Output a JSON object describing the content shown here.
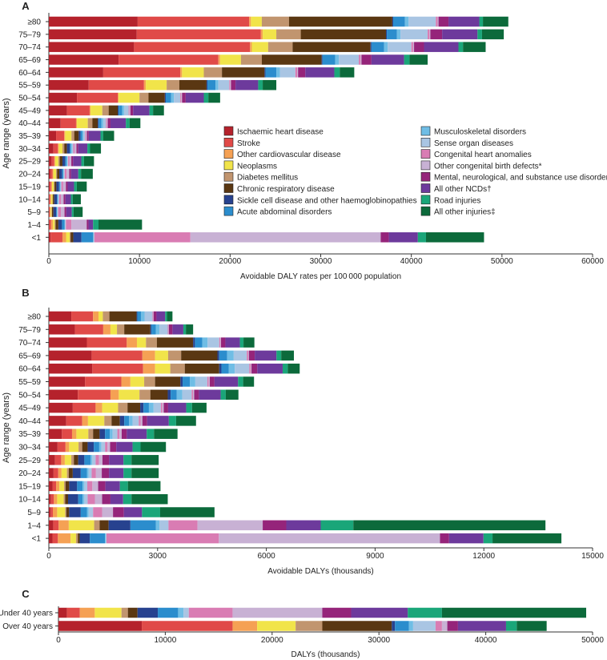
{
  "colors": {
    "ihd": "#b5222c",
    "stroke": "#e04a48",
    "ocd": "#f5a154",
    "neo": "#f1e44a",
    "dm": "#c1956f",
    "crd": "#5a3712",
    "scd": "#27428f",
    "aad": "#2b8dcd",
    "msk": "#6fbde5",
    "sod": "#a9c5e3",
    "cha": "#d97cb3",
    "ocb": "#c8b1d4",
    "mns": "#95247a",
    "oncd": "#6d3a9c",
    "road": "#1aa679",
    "inj": "#0c6a3b"
  },
  "legend": [
    {
      "key": "ihd",
      "label": "Ischaemic heart disease"
    },
    {
      "key": "stroke",
      "label": "Stroke"
    },
    {
      "key": "ocd",
      "label": "Other cardiovascular disease"
    },
    {
      "key": "neo",
      "label": "Neoplasms"
    },
    {
      "key": "dm",
      "label": "Diabetes mellitus"
    },
    {
      "key": "crd",
      "label": "Chronic respiratory disease"
    },
    {
      "key": "scd",
      "label": "Sickle cell disease and other haemoglobinopathies"
    },
    {
      "key": "aad",
      "label": "Acute abdominal disorders"
    },
    {
      "key": "msk",
      "label": "Musculoskeletal disorders"
    },
    {
      "key": "sod",
      "label": "Sense organ diseases"
    },
    {
      "key": "cha",
      "label": "Congenital heart anomalies"
    },
    {
      "key": "ocb",
      "label": "Other congenital birth defects*"
    },
    {
      "key": "mns",
      "label": "Mental, neurological, and substance use disorders"
    },
    {
      "key": "oncd",
      "label": "All other NCDs†"
    },
    {
      "key": "road",
      "label": "Road injuries"
    },
    {
      "key": "inj",
      "label": "All other injuries‡"
    }
  ],
  "chart_data": [
    {
      "panel": "A",
      "type": "bar",
      "orientation": "horizontal",
      "stacked": true,
      "xlabel": "Avoidable DALY rates per 100 000 population",
      "ylabel": "Age range (years)",
      "xlim": [
        0,
        60000
      ],
      "xticks": [
        "0",
        "10000",
        "20000",
        "30000",
        "40000",
        "50000",
        "60000"
      ],
      "categories": [
        "≥80",
        "75–79",
        "70–74",
        "65–69",
        "60–64",
        "55–59",
        "50–54",
        "45–49",
        "40–44",
        "35–39",
        "30–34",
        "25–29",
        "20–24",
        "15–19",
        "10–14",
        "5–9",
        "1–4",
        "<1"
      ],
      "series": [
        {
          "key": "ihd",
          "values": [
            9800,
            9700,
            9400,
            7700,
            6000,
            4400,
            3100,
            2000,
            1300,
            800,
            500,
            300,
            200,
            100,
            50,
            50,
            50,
            200
          ]
        },
        {
          "key": "stroke",
          "values": [
            12300,
            13700,
            12800,
            11000,
            8500,
            6100,
            4500,
            2500,
            1700,
            900,
            500,
            300,
            200,
            150,
            100,
            50,
            200,
            1300
          ]
        },
        {
          "key": "ocd",
          "values": [
            200,
            200,
            200,
            200,
            200,
            200,
            100,
            100,
            100,
            100,
            100,
            100,
            100,
            100,
            100,
            100,
            200,
            400
          ]
        },
        {
          "key": "neo",
          "values": [
            1200,
            1500,
            1800,
            2300,
            2400,
            2300,
            2300,
            1300,
            1200,
            700,
            400,
            350,
            300,
            200,
            150,
            100,
            200,
            400
          ]
        },
        {
          "key": "dm",
          "values": [
            3000,
            2700,
            2700,
            2300,
            2000,
            1400,
            1000,
            700,
            500,
            300,
            200,
            150,
            100,
            80,
            50,
            50,
            100,
            100
          ]
        },
        {
          "key": "crd",
          "values": [
            11400,
            9400,
            8600,
            6600,
            4700,
            3000,
            1800,
            1000,
            600,
            500,
            300,
            300,
            250,
            200,
            150,
            150,
            300,
            300
          ]
        },
        {
          "key": "scd",
          "values": [
            100,
            100,
            100,
            100,
            100,
            100,
            100,
            100,
            100,
            200,
            300,
            300,
            300,
            300,
            300,
            300,
            400,
            900
          ]
        },
        {
          "key": "aad",
          "values": [
            1300,
            1100,
            1400,
            1400,
            1200,
            900,
            600,
            400,
            300,
            200,
            150,
            150,
            150,
            100,
            100,
            100,
            300,
            1300
          ]
        },
        {
          "key": "msk",
          "values": [
            400,
            400,
            400,
            400,
            400,
            300,
            300,
            200,
            200,
            100,
            100,
            80,
            50,
            50,
            30,
            30,
            30,
            20
          ]
        },
        {
          "key": "sod",
          "values": [
            3000,
            3000,
            2600,
            2200,
            1700,
            1200,
            700,
            500,
            300,
            200,
            150,
            100,
            100,
            100,
            100,
            100,
            100,
            100
          ]
        },
        {
          "key": "cha",
          "values": [
            200,
            200,
            200,
            200,
            200,
            100,
            100,
            100,
            100,
            100,
            150,
            150,
            200,
            200,
            200,
            300,
            600,
            10600
          ]
        },
        {
          "key": "ocb",
          "values": [
            100,
            100,
            100,
            100,
            100,
            100,
            100,
            100,
            100,
            100,
            200,
            200,
            300,
            300,
            300,
            400,
            1700,
            21000
          ]
        },
        {
          "key": "mns",
          "values": [
            1100,
            1300,
            1100,
            1100,
            800,
            500,
            400,
            300,
            300,
            200,
            200,
            200,
            200,
            200,
            200,
            200,
            200,
            900
          ]
        },
        {
          "key": "oncd",
          "values": [
            3400,
            3900,
            3800,
            3600,
            3200,
            2500,
            2000,
            1800,
            1700,
            1300,
            1000,
            900,
            800,
            700,
            600,
            600,
            500,
            3200
          ]
        },
        {
          "key": "road",
          "values": [
            400,
            500,
            500,
            600,
            600,
            500,
            500,
            400,
            400,
            300,
            300,
            300,
            300,
            300,
            200,
            200,
            600,
            900
          ]
        },
        {
          "key": "inj",
          "values": [
            2800,
            2400,
            2500,
            2000,
            1600,
            1500,
            1300,
            1200,
            1200,
            1200,
            1200,
            1100,
            1300,
            1100,
            900,
            1000,
            4800,
            6400
          ]
        }
      ]
    },
    {
      "panel": "B",
      "type": "bar",
      "orientation": "horizontal",
      "stacked": true,
      "xlabel": "Avoidable DALYs (thousands)",
      "ylabel": "Age range (years)",
      "xlim": [
        0,
        15000
      ],
      "xticks": [
        "0",
        "3000",
        "6000",
        "9000",
        "12000",
        "15000"
      ],
      "categories": [
        "≥80",
        "75–79",
        "70–74",
        "65–69",
        "60–64",
        "55–59",
        "50–54",
        "45–49",
        "40–44",
        "35–39",
        "30–34",
        "25–29",
        "20–24",
        "15–19",
        "10–14",
        "5–9",
        "1–4",
        "<1"
      ],
      "series": [
        {
          "key": "ihd",
          "values": [
            620,
            720,
            1050,
            1180,
            1200,
            1000,
            800,
            660,
            480,
            360,
            240,
            170,
            130,
            100,
            60,
            50,
            120,
            100
          ]
        },
        {
          "key": "stroke",
          "values": [
            600,
            780,
            1100,
            1400,
            1400,
            1000,
            900,
            630,
            440,
            280,
            220,
            170,
            130,
            100,
            80,
            60,
            150,
            150
          ]
        },
        {
          "key": "ocd",
          "values": [
            150,
            200,
            280,
            350,
            330,
            250,
            230,
            180,
            160,
            120,
            100,
            100,
            90,
            90,
            90,
            120,
            280,
            350
          ]
        },
        {
          "key": "neo",
          "values": [
            120,
            180,
            250,
            360,
            420,
            380,
            570,
            440,
            450,
            330,
            260,
            180,
            150,
            130,
            180,
            220,
            700,
            150
          ]
        },
        {
          "key": "dm",
          "values": [
            180,
            200,
            300,
            360,
            400,
            300,
            300,
            260,
            200,
            130,
            100,
            70,
            50,
            40,
            40,
            30,
            150,
            50
          ]
        },
        {
          "key": "crd",
          "values": [
            750,
            720,
            1000,
            1000,
            950,
            700,
            480,
            350,
            230,
            180,
            150,
            120,
            110,
            100,
            80,
            80,
            250,
            50
          ]
        },
        {
          "key": "scd",
          "values": [
            20,
            30,
            50,
            50,
            60,
            60,
            80,
            90,
            120,
            150,
            170,
            170,
            220,
            220,
            280,
            320,
            600,
            280
          ]
        },
        {
          "key": "aad",
          "values": [
            100,
            120,
            200,
            220,
            200,
            200,
            170,
            150,
            130,
            130,
            150,
            170,
            170,
            150,
            120,
            170,
            700,
            420
          ]
        },
        {
          "key": "msk",
          "values": [
            100,
            100,
            150,
            180,
            170,
            150,
            150,
            130,
            100,
            80,
            60,
            50,
            50,
            50,
            50,
            50,
            100,
            20
          ]
        },
        {
          "key": "sod",
          "values": [
            220,
            230,
            320,
            360,
            400,
            330,
            260,
            200,
            170,
            130,
            100,
            90,
            80,
            80,
            90,
            120,
            250,
            20
          ]
        },
        {
          "key": "cha",
          "values": [
            20,
            20,
            30,
            40,
            40,
            40,
            40,
            40,
            50,
            60,
            70,
            90,
            120,
            140,
            200,
            250,
            800,
            3100
          ]
        },
        {
          "key": "ocb",
          "values": [
            10,
            10,
            20,
            20,
            20,
            30,
            30,
            40,
            50,
            60,
            70,
            100,
            160,
            160,
            200,
            300,
            1800,
            6100
          ]
        },
        {
          "key": "mns",
          "values": [
            80,
            100,
            120,
            160,
            160,
            130,
            130,
            120,
            130,
            140,
            170,
            180,
            200,
            200,
            230,
            300,
            650,
            250
          ]
        },
        {
          "key": "oncd",
          "values": [
            240,
            300,
            400,
            600,
            700,
            650,
            600,
            500,
            600,
            550,
            450,
            400,
            400,
            400,
            350,
            500,
            950,
            950
          ]
        },
        {
          "key": "road",
          "values": [
            50,
            70,
            100,
            130,
            140,
            140,
            140,
            160,
            200,
            200,
            220,
            220,
            220,
            220,
            230,
            500,
            900,
            250
          ]
        },
        {
          "key": "inj",
          "values": [
            150,
            200,
            300,
            350,
            330,
            300,
            350,
            400,
            550,
            650,
            700,
            750,
            750,
            900,
            1000,
            1500,
            5300,
            1900
          ]
        }
      ]
    },
    {
      "panel": "C",
      "type": "bar",
      "orientation": "horizontal",
      "stacked": true,
      "xlabel": "DALYs (thousands)",
      "xlim": [
        0,
        50000
      ],
      "xticks": [
        "0",
        "10000",
        "20000",
        "30000",
        "40000",
        "50000"
      ],
      "categories": [
        "Under 40 years",
        "Over 40 years"
      ],
      "series": [
        {
          "key": "ihd",
          "values": [
            800,
            7800
          ]
        },
        {
          "key": "stroke",
          "values": [
            1200,
            8500
          ]
        },
        {
          "key": "ocd",
          "values": [
            1400,
            2300
          ]
        },
        {
          "key": "neo",
          "values": [
            2500,
            3600
          ]
        },
        {
          "key": "dm",
          "values": [
            600,
            2500
          ]
        },
        {
          "key": "crd",
          "values": [
            900,
            6500
          ]
        },
        {
          "key": "scd",
          "values": [
            1900,
            300
          ]
        },
        {
          "key": "aad",
          "values": [
            1900,
            1300
          ]
        },
        {
          "key": "msk",
          "values": [
            500,
            400
          ]
        },
        {
          "key": "sod",
          "values": [
            500,
            2100
          ]
        },
        {
          "key": "cha",
          "values": [
            4100,
            600
          ]
        },
        {
          "key": "ocb",
          "values": [
            8400,
            500
          ]
        },
        {
          "key": "mns",
          "values": [
            2700,
            1000
          ]
        },
        {
          "key": "oncd",
          "values": [
            5300,
            4500
          ]
        },
        {
          "key": "road",
          "values": [
            3200,
            1000
          ]
        },
        {
          "key": "inj",
          "values": [
            13500,
            2800
          ]
        }
      ]
    }
  ]
}
